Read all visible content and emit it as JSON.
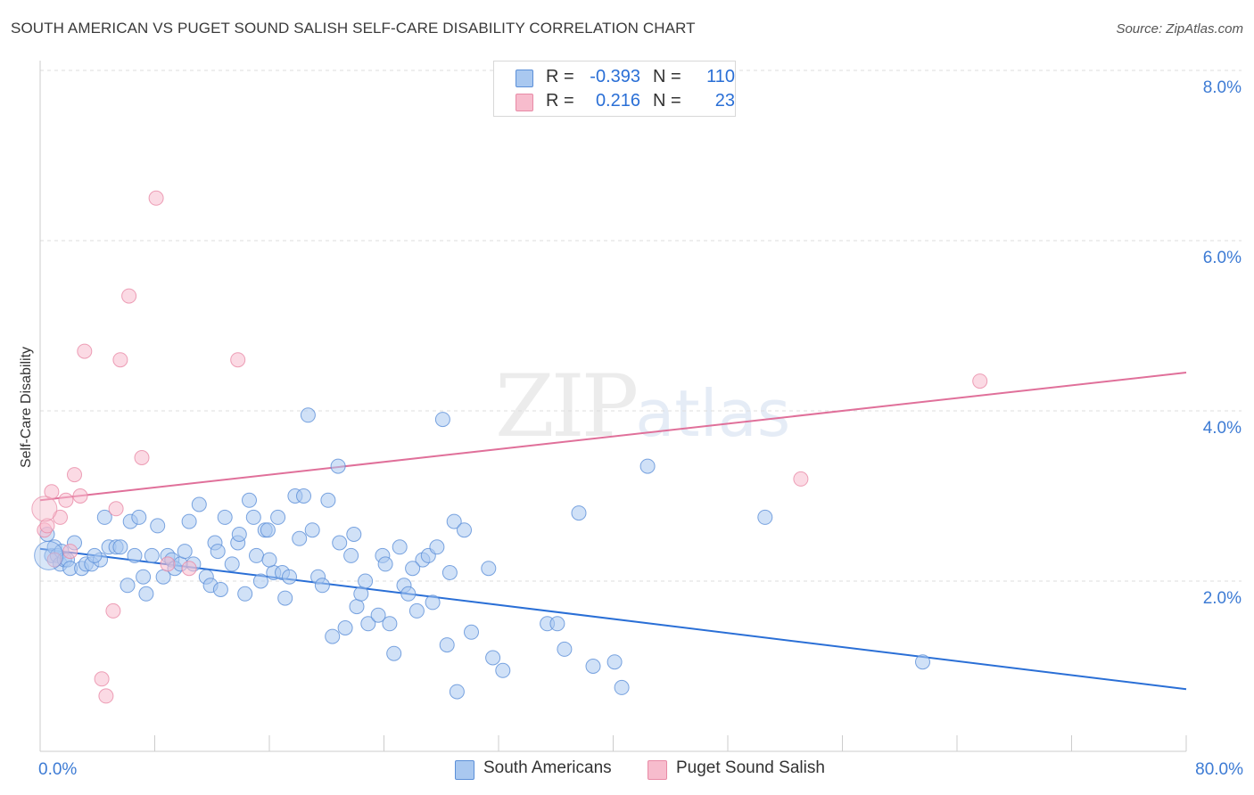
{
  "title": "SOUTH AMERICAN VS PUGET SOUND SALISH SELF-CARE DISABILITY CORRELATION CHART",
  "source": "Source: ZipAtlas.com",
  "watermark": {
    "zip": "ZIP",
    "atlas": "atlas"
  },
  "legend": {
    "r_label": "R =",
    "n_label": "N =",
    "rows": [
      {
        "r": "-0.393",
        "n": "110"
      },
      {
        "r": "0.216",
        "n": "23"
      }
    ]
  },
  "bottom_legend": [
    "South Americans",
    "Puget Sound Salish"
  ],
  "colors": {
    "blue_fill": "#a9c8f0",
    "blue_stroke": "#5b8fd8",
    "blue_line": "#2a6fd6",
    "pink_fill": "#f7bccd",
    "pink_stroke": "#e88aa6",
    "pink_line": "#e0709a",
    "tick_text": "#3d7bd4",
    "grid": "#dddddd"
  },
  "chart_data": {
    "type": "scatter",
    "title": "SOUTH AMERICAN VS PUGET SOUND SALISH SELF-CARE DISABILITY CORRELATION CHART",
    "xlabel": "",
    "ylabel": "Self-Care Disability",
    "xlim": [
      0,
      80
    ],
    "ylim": [
      0,
      8
    ],
    "x_tick_labels": [
      "0.0%",
      "80.0%"
    ],
    "y_ticks": [
      2,
      4,
      6,
      8
    ],
    "y_tick_labels": [
      "2.0%",
      "4.0%",
      "6.0%",
      "8.0%"
    ],
    "series": [
      {
        "name": "South Americans",
        "r": -0.393,
        "n": 110,
        "trend": {
          "x": [
            0,
            80
          ],
          "y": [
            2.38,
            0.73
          ]
        },
        "points": [
          [
            0.5,
            2.55
          ],
          [
            0.8,
            2.3
          ],
          [
            1.0,
            2.4
          ],
          [
            1.2,
            2.3
          ],
          [
            1.4,
            2.2
          ],
          [
            1.5,
            2.35
          ],
          [
            1.7,
            2.25
          ],
          [
            1.9,
            2.25
          ],
          [
            2.1,
            2.15
          ],
          [
            2.4,
            2.45
          ],
          [
            2.9,
            2.15
          ],
          [
            3.2,
            2.2
          ],
          [
            3.6,
            2.2
          ],
          [
            4.2,
            2.25
          ],
          [
            4.5,
            2.75
          ],
          [
            4.8,
            2.4
          ],
          [
            5.3,
            2.4
          ],
          [
            5.6,
            2.4
          ],
          [
            6.1,
            1.95
          ],
          [
            6.3,
            2.7
          ],
          [
            6.6,
            2.3
          ],
          [
            6.9,
            2.75
          ],
          [
            7.4,
            1.85
          ],
          [
            7.8,
            2.3
          ],
          [
            8.2,
            2.65
          ],
          [
            8.6,
            2.05
          ],
          [
            8.9,
            2.3
          ],
          [
            9.2,
            2.25
          ],
          [
            9.4,
            2.15
          ],
          [
            9.8,
            2.2
          ],
          [
            10.1,
            2.35
          ],
          [
            10.4,
            2.7
          ],
          [
            10.7,
            2.2
          ],
          [
            11.1,
            2.9
          ],
          [
            11.6,
            2.05
          ],
          [
            11.9,
            1.95
          ],
          [
            12.2,
            2.45
          ],
          [
            12.4,
            2.35
          ],
          [
            12.6,
            1.9
          ],
          [
            12.9,
            2.75
          ],
          [
            13.4,
            2.2
          ],
          [
            13.8,
            2.45
          ],
          [
            13.9,
            2.55
          ],
          [
            14.3,
            1.85
          ],
          [
            14.6,
            2.95
          ],
          [
            14.9,
            2.75
          ],
          [
            15.1,
            2.3
          ],
          [
            15.4,
            2.0
          ],
          [
            15.7,
            2.6
          ],
          [
            15.9,
            2.6
          ],
          [
            16.3,
            2.1
          ],
          [
            16.6,
            2.75
          ],
          [
            16.9,
            2.1
          ],
          [
            17.1,
            1.8
          ],
          [
            17.4,
            2.05
          ],
          [
            17.8,
            3.0
          ],
          [
            18.1,
            2.5
          ],
          [
            18.4,
            3.0
          ],
          [
            18.7,
            3.95
          ],
          [
            19.4,
            2.05
          ],
          [
            19.7,
            1.95
          ],
          [
            20.1,
            2.95
          ],
          [
            20.4,
            1.35
          ],
          [
            20.8,
            3.35
          ],
          [
            20.9,
            2.45
          ],
          [
            21.3,
            1.45
          ],
          [
            21.7,
            2.3
          ],
          [
            21.9,
            2.55
          ],
          [
            22.1,
            1.7
          ],
          [
            22.4,
            1.85
          ],
          [
            22.7,
            2.0
          ],
          [
            22.9,
            1.5
          ],
          [
            23.6,
            1.6
          ],
          [
            23.9,
            2.3
          ],
          [
            24.1,
            2.2
          ],
          [
            24.4,
            1.5
          ],
          [
            24.7,
            1.15
          ],
          [
            25.1,
            2.4
          ],
          [
            25.4,
            1.95
          ],
          [
            25.7,
            1.85
          ],
          [
            26.3,
            1.65
          ],
          [
            26.7,
            2.25
          ],
          [
            27.1,
            2.3
          ],
          [
            27.4,
            1.75
          ],
          [
            27.7,
            2.4
          ],
          [
            28.1,
            3.9
          ],
          [
            28.4,
            1.25
          ],
          [
            28.6,
            2.1
          ],
          [
            28.9,
            2.7
          ],
          [
            29.1,
            0.7
          ],
          [
            29.6,
            2.6
          ],
          [
            30.1,
            1.4
          ],
          [
            31.3,
            2.15
          ],
          [
            31.6,
            1.1
          ],
          [
            32.3,
            0.95
          ],
          [
            35.4,
            1.5
          ],
          [
            36.1,
            1.5
          ],
          [
            36.6,
            1.2
          ],
          [
            37.6,
            2.8
          ],
          [
            38.6,
            1.0
          ],
          [
            40.1,
            1.05
          ],
          [
            40.6,
            0.75
          ],
          [
            42.4,
            3.35
          ],
          [
            50.6,
            2.75
          ],
          [
            61.6,
            1.05
          ],
          [
            3.8,
            2.3
          ],
          [
            7.2,
            2.05
          ],
          [
            16.0,
            2.25
          ],
          [
            26.0,
            2.15
          ],
          [
            19.0,
            2.6
          ]
        ]
      },
      {
        "name": "Puget Sound Salish",
        "r": 0.216,
        "n": 23,
        "trend": {
          "x": [
            0,
            80
          ],
          "y": [
            2.95,
            4.45
          ]
        },
        "points": [
          [
            0.3,
            2.6
          ],
          [
            0.5,
            2.65
          ],
          [
            0.8,
            3.05
          ],
          [
            1.0,
            2.25
          ],
          [
            1.4,
            2.75
          ],
          [
            1.8,
            2.95
          ],
          [
            2.1,
            2.35
          ],
          [
            2.4,
            3.25
          ],
          [
            2.8,
            3.0
          ],
          [
            3.1,
            4.7
          ],
          [
            4.3,
            0.85
          ],
          [
            4.6,
            0.65
          ],
          [
            5.1,
            1.65
          ],
          [
            5.3,
            2.85
          ],
          [
            5.6,
            4.6
          ],
          [
            6.2,
            5.35
          ],
          [
            7.1,
            3.45
          ],
          [
            8.1,
            6.5
          ],
          [
            8.9,
            2.2
          ],
          [
            10.4,
            2.15
          ],
          [
            13.8,
            4.6
          ],
          [
            53.1,
            3.2
          ],
          [
            65.6,
            4.35
          ]
        ]
      }
    ]
  }
}
